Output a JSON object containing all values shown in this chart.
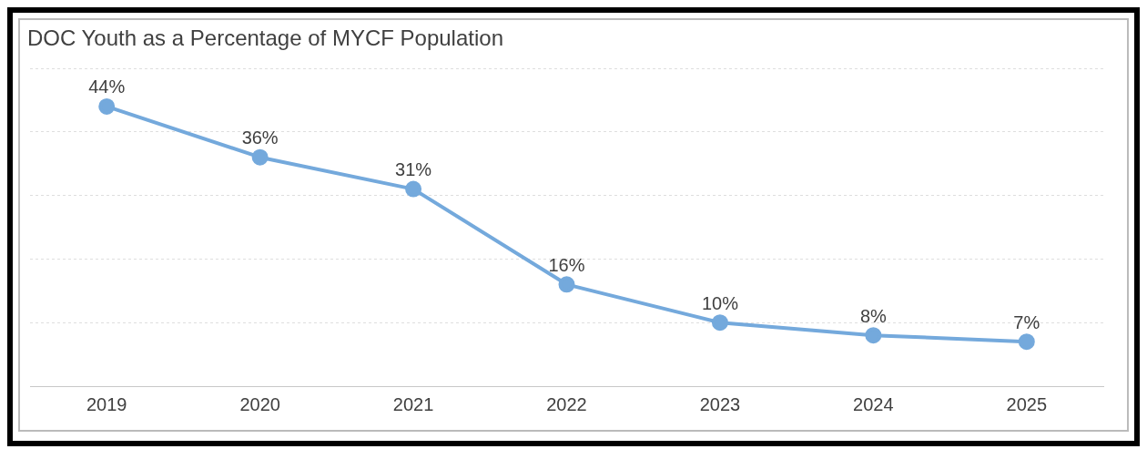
{
  "chart_data": {
    "type": "line",
    "title": "DOC Youth as a Percentage of MYCF Population",
    "categories": [
      "2019",
      "2020",
      "2021",
      "2022",
      "2023",
      "2024",
      "2025"
    ],
    "series": [
      {
        "color": "#74a9dc",
        "values": [
          44,
          36,
          31,
          16,
          10,
          8,
          7
        ],
        "value_labels": [
          "44%",
          "36%",
          "31%",
          "16%",
          "10%",
          "8%",
          "7%"
        ]
      }
    ],
    "ylim": [
      0,
      50
    ],
    "yticks": [
      {
        "value": 0,
        "label": null
      },
      {
        "value": 10,
        "label": null
      },
      {
        "value": 20,
        "label": null
      },
      {
        "value": 30,
        "label": null
      },
      {
        "value": 40,
        "label": null
      },
      {
        "value": 50,
        "label": null
      }
    ],
    "grid": "y",
    "tick_labels": "x",
    "marker": "circle",
    "line_style": "solid",
    "legend": false
  }
}
